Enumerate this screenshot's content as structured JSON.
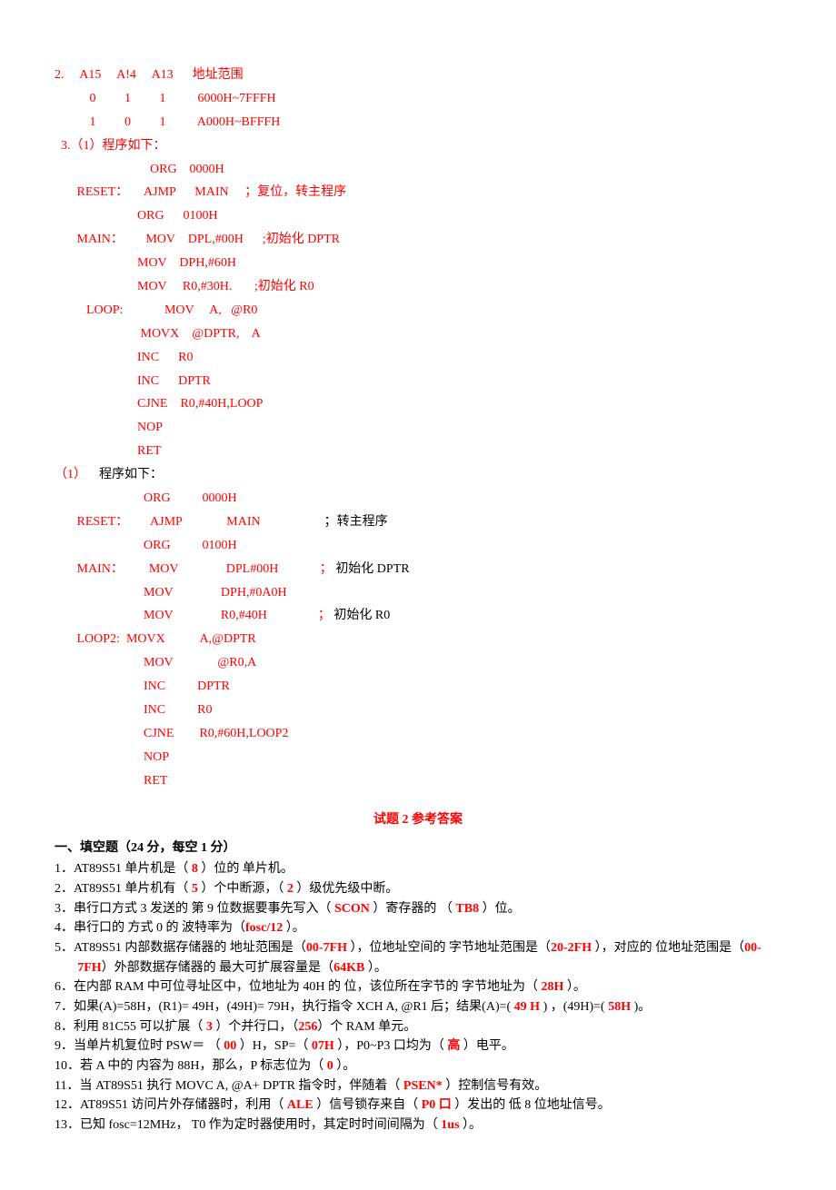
{
  "addrTable": {
    "headerLine": "2.     A15     A!4     A13      地址范围",
    "row1": "           0         1         1          6000H~7FFFH",
    "row2": "           1         0         1          A000H~BFFFH"
  },
  "prog1": {
    "title": "  3.（1）程序如下：",
    "l01": "                              ORG    0000H",
    "l02": "       RESET：     AJMP      MAIN     ；复位，转主程序",
    "l03": "                          ORG      0100H",
    "l04": "       MAIN：       MOV    DPL,#00H      ;初始化 DPTR",
    "l05": "                          MOV    DPH,#60H",
    "l06": "                          MOV     R0,#30H.       ;初始化 R0",
    "l07": "          LOOP:             MOV     A,   @R0",
    "l08": "                           MOVX    @DPTR,    A",
    "l09": "                          INC      R0",
    "l10": "                          INC      DPTR",
    "l11": "                          CJNE    R0,#40H,LOOP",
    "l12": "                          NOP",
    "l13": "                          RET"
  },
  "prog2": {
    "title_prefix": "（1）    ",
    "title_rest": "程序如下：",
    "l01": "                            ORG          0000H",
    "l02a": "       RESET：       AJMP              MAIN                    ",
    "l02b": "；转主程序",
    "l03": "                            ORG          0100H",
    "l04a": "       MAIN：        MOV               DPL#00H             ； ",
    "l04b": "初始化 DPTR",
    "l05": "                            MOV               DPH,#0A0H",
    "l06a": "                            MOV               R0,#40H                ； ",
    "l06b": "初始化 R0",
    "l07": "       LOOP2:  MOVX           A,@DPTR",
    "l08": "                            MOV              @R0,A",
    "l09": "                            INC          DPTR",
    "l10": "                            INC          R0",
    "l11": "                            CJNE        R0,#60H,LOOP2",
    "l12": "                            NOP",
    "l13": "                            RET"
  },
  "exam2": {
    "title": "试题 2   参考答案",
    "heading": "一、填空题（24 分，每空 1 分）",
    "q1": {
      "pre": "1．AT89S51 单片机是（  ",
      "a": "8",
      "post": "  ）位的  单片机。"
    },
    "q2": {
      "pre": "2．AT89S51 单片机有（   ",
      "a": "5",
      "mid": "     ）个中断源，（   ",
      "b": "2",
      "post": "     ）级优先级中断。"
    },
    "q3": {
      "pre": "3．串行口方式 3 发送的  第 9 位数据要事先写入（  ",
      "a": "SCON",
      "mid": "  ）寄存器的   （ ",
      "b": "TB8",
      "post": "  ）位。"
    },
    "q4": {
      "pre": "4．串行口的  方式 0 的  波特率为（",
      "a": "fosc/12",
      "post": "  ）。"
    },
    "q5": {
      "pre": "5．AT89S51 内部数据存储器的  地址范围是（",
      "a": "00-7FH",
      "mid1": "    ），位地址空间的  字节地址范围是（",
      "b": "20-2FH",
      "mid2": "  ），对应的  位地址范围是（",
      "c": "00-7FH",
      "mid3": "）外部数据存储器的  最大可扩展容量是（",
      "d": "64KB",
      "post": "  ）。"
    },
    "q6": {
      "pre": "6．在内部 RAM 中可位寻址区中，位地址为 40H 的  位，该位所在字节的  字节地址为（  ",
      "a": "28H",
      "post": "  ）。"
    },
    "q7": {
      "pre": "7．如果(A)=58H，(R1)= 49H，(49H)= 79H，执行指令 XCH    A, @R1 后；结果(A)=( ",
      "a": "49  H",
      "mid": "   )  ，(49H)=( ",
      "b": "58H",
      "post": " )。"
    },
    "q8": {
      "pre": "8．利用 81C55 可以扩展（  ",
      "a": "3",
      "mid": "  ）个并行口，（",
      "b": "256",
      "post": "）个 RAM 单元。"
    },
    "q9": {
      "pre": "9．当单片机复位时 PSW＝        （  ",
      "a": "00",
      "mid1": "  ）H，SP=（  ",
      "b": "07H",
      "mid2": "  ），P0~P3 口均为（  ",
      "c": "高",
      "post": "  ）电平。"
    },
    "q10": {
      "pre": "10．若 A 中的  内容为 88H，那么，P 标志位为（  ",
      "a": "0",
      "post": "    ）。"
    },
    "q11": {
      "pre": "11．当 AT89S51 执行 MOVC    A, @A+ DPTR 指令时，伴随着（  ",
      "a": "PSEN*",
      "post": "  ）控制信号有效。"
    },
    "q12": {
      "pre": "12．AT89S51 访问片外存储器时，利用（  ",
      "a": "ALE",
      "mid": "   ）信号锁存来自（   ",
      "b": "P0 口",
      "post": "      ）发出的  低 8 位地址信号。"
    },
    "q13": {
      "pre": "13．已知 fosc=12MHz，  T0 作为定时器使用时，其定时时间间隔为（   ",
      "a": "1us",
      "post": "    ）。"
    }
  }
}
